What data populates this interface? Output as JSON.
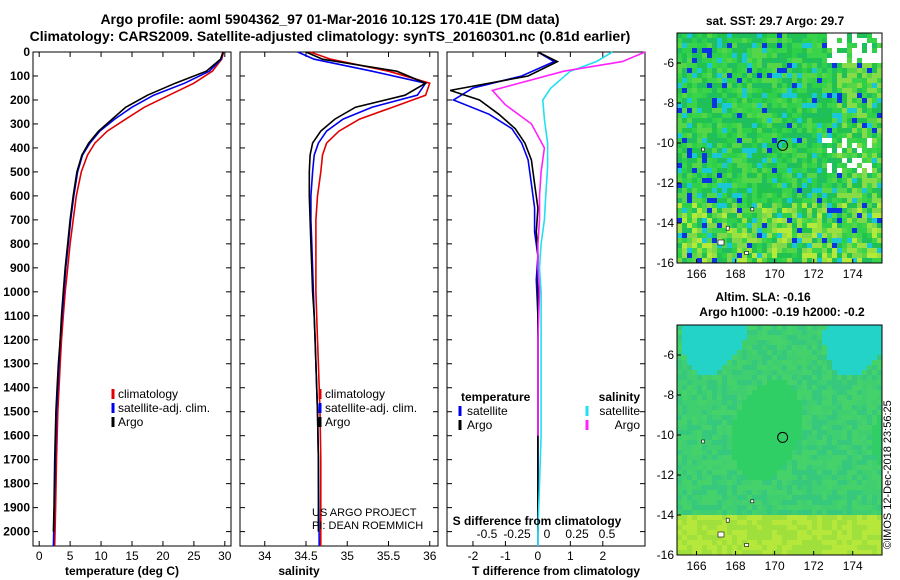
{
  "header": {
    "title_line1": "Argo profile: aoml 5904362_97 01-Mar-2016 10.12S 170.41E (DM data)",
    "title_line2": "Climatology: CARS2009. Satellite-adjusted climatology: synTS_20160301.nc (0.81d earlier)"
  },
  "colors": {
    "climatology": "#e00000",
    "satellite": "#0000ee",
    "argo": "#000000",
    "sat_salinity": "#22e0f0",
    "argo_salinity": "#ff22ff"
  },
  "chart_data": [
    {
      "type": "line",
      "panel": "temperature",
      "xlabel": "temperature (deg C)",
      "xlim": [
        -1,
        31
      ],
      "xticks": [
        0,
        5,
        10,
        15,
        20,
        25,
        30
      ],
      "ylabel": "",
      "ylim": [
        2060,
        0
      ],
      "yticks": [
        0,
        100,
        200,
        300,
        400,
        500,
        600,
        700,
        800,
        900,
        1000,
        1100,
        1200,
        1300,
        1400,
        1500,
        1600,
        1700,
        1800,
        1900,
        2000
      ],
      "legend": [
        "climatology",
        "satellite-adj. clim.",
        "Argo"
      ],
      "series": [
        {
          "name": "climatology",
          "color_key": "climatology",
          "x": [
            29.8,
            29.5,
            28.0,
            25.0,
            21.0,
            17.0,
            14.0,
            11.0,
            9.0,
            7.8,
            6.8,
            6.0,
            5.5,
            5.0,
            4.6,
            4.2,
            3.9,
            3.6,
            3.4,
            3.2,
            3.0,
            2.8,
            2.65,
            2.5
          ],
          "y": [
            0,
            30,
            80,
            130,
            180,
            230,
            280,
            330,
            380,
            430,
            500,
            600,
            700,
            800,
            900,
            1000,
            1100,
            1200,
            1300,
            1400,
            1500,
            1700,
            1900,
            2060
          ]
        },
        {
          "name": "satellite-adj. clim.",
          "color_key": "satellite",
          "x": [
            29.7,
            29.4,
            27.5,
            23.5,
            18.5,
            15.0,
            12.2,
            9.8,
            8.2,
            7.0,
            6.2,
            5.6,
            5.1,
            4.7,
            4.3,
            4.0,
            3.7,
            3.4,
            3.2,
            3.0,
            2.8,
            2.6,
            2.45,
            2.3
          ],
          "y": [
            0,
            30,
            80,
            130,
            180,
            230,
            280,
            330,
            380,
            430,
            500,
            600,
            700,
            800,
            900,
            1000,
            1100,
            1200,
            1300,
            1400,
            1500,
            1700,
            1900,
            2060
          ]
        },
        {
          "name": "Argo",
          "color_key": "argo",
          "x": [
            29.7,
            29.3,
            27.0,
            22.0,
            17.5,
            14.0,
            11.8,
            9.6,
            8.0,
            6.9,
            6.1,
            5.5,
            5.0,
            4.6,
            4.2,
            3.9,
            3.6,
            3.4,
            3.1,
            2.9,
            2.7,
            2.5,
            2.4,
            2.3
          ],
          "y": [
            0,
            30,
            80,
            130,
            180,
            230,
            280,
            330,
            380,
            430,
            500,
            600,
            700,
            800,
            900,
            1000,
            1100,
            1200,
            1300,
            1400,
            1500,
            1700,
            1900,
            2000
          ]
        }
      ]
    },
    {
      "type": "line",
      "panel": "salinity",
      "xlabel": "salinity",
      "xlim": [
        33.7,
        36.1
      ],
      "xticks": [
        34,
        34.5,
        35,
        35.5,
        36
      ],
      "xtick_labels": [
        "34",
        "34.5",
        "35",
        "35.5",
        "36"
      ],
      "ylim": [
        2060,
        0
      ],
      "legend": [
        "climatology",
        "satellite-adj. clim.",
        "Argo"
      ],
      "annotations": [
        "US ARGO PROJECT",
        "PI: DEAN ROEMMICH"
      ],
      "series": [
        {
          "name": "climatology",
          "color_key": "climatology",
          "x": [
            34.55,
            34.8,
            35.5,
            36.0,
            35.95,
            35.55,
            35.15,
            34.9,
            34.75,
            34.7,
            34.68,
            34.64,
            34.62,
            34.62,
            34.62,
            34.62,
            34.63,
            34.64,
            34.65,
            34.66,
            34.67,
            34.68,
            34.68
          ],
          "y": [
            0,
            30,
            80,
            130,
            180,
            230,
            280,
            330,
            380,
            430,
            500,
            600,
            700,
            800,
            900,
            1000,
            1100,
            1200,
            1300,
            1400,
            1500,
            1700,
            2060
          ]
        },
        {
          "name": "satellite-adj. clim.",
          "color_key": "satellite",
          "x": [
            34.4,
            34.6,
            35.3,
            35.95,
            35.85,
            35.3,
            34.95,
            34.75,
            34.65,
            34.6,
            34.58,
            34.56,
            34.56,
            34.57,
            34.58,
            34.59,
            34.6,
            34.61,
            34.62,
            34.63,
            34.64,
            34.65,
            34.66
          ],
          "y": [
            0,
            30,
            80,
            130,
            180,
            230,
            280,
            330,
            380,
            430,
            500,
            600,
            700,
            800,
            900,
            1000,
            1100,
            1200,
            1300,
            1400,
            1500,
            1700,
            2060
          ]
        },
        {
          "name": "Argo",
          "color_key": "argo",
          "x": [
            34.5,
            34.7,
            35.6,
            35.95,
            35.7,
            35.1,
            34.85,
            34.68,
            34.58,
            34.55,
            34.54,
            34.54,
            34.55,
            34.56,
            34.57,
            34.58,
            34.6,
            34.61,
            34.62,
            34.63,
            34.64,
            34.65,
            34.65
          ],
          "y": [
            0,
            30,
            80,
            130,
            180,
            230,
            280,
            330,
            380,
            430,
            500,
            600,
            700,
            800,
            900,
            1000,
            1100,
            1200,
            1300,
            1400,
            1500,
            1700,
            2000
          ]
        }
      ]
    },
    {
      "type": "line",
      "panel": "difference",
      "xlabel": "T difference from climatology",
      "xlim": [
        -2.8,
        3.3
      ],
      "xticks": [
        -2,
        -1,
        0,
        1,
        2
      ],
      "xlabel_top": "S difference from climatology",
      "xticks_top": [
        -0.5,
        -0.25,
        0,
        0.25,
        0.5
      ],
      "xtick_labels_top": [
        "-0.5",
        "-0.25",
        "0",
        "0.25",
        "0.5"
      ],
      "ylim": [
        2060,
        0
      ],
      "legend_temperature": {
        "heading": "temperature",
        "items": [
          "satellite",
          "Argo"
        ]
      },
      "legend_salinity": {
        "heading": "salinity",
        "items": [
          "satellite",
          "Argo"
        ]
      },
      "series": [
        {
          "name": "T satellite",
          "color_key": "satellite",
          "x": [
            0.0,
            0.5,
            -0.5,
            -2.0,
            -2.6,
            -1.5,
            -0.8,
            -0.5,
            -0.3,
            -0.2,
            -0.1,
            -0.1,
            0.0,
            -0.05,
            0.0,
            0.0,
            0.0,
            0.0,
            0.0,
            0.0,
            0.0
          ],
          "y": [
            0,
            40,
            100,
            150,
            200,
            260,
            320,
            380,
            450,
            550,
            650,
            750,
            850,
            950,
            1100,
            1300,
            1500,
            1700,
            1900,
            2000,
            2060
          ]
        },
        {
          "name": "T Argo",
          "color_key": "argo",
          "x": [
            0.0,
            0.6,
            -0.3,
            -2.7,
            -1.8,
            -1.2,
            -0.7,
            -0.4,
            -0.2,
            -0.1,
            0.0,
            -0.05,
            0.0,
            0.0,
            0.0,
            0.0,
            0.0,
            0.0,
            0.0,
            0.0
          ],
          "y": [
            0,
            40,
            100,
            160,
            200,
            260,
            320,
            380,
            450,
            550,
            650,
            750,
            850,
            950,
            1100,
            1300,
            1500,
            1700,
            1900,
            2000
          ]
        },
        {
          "name": "S satellite",
          "color_key": "sat_salinity",
          "x": [
            2.3,
            1.8,
            1.0,
            0.4,
            0.15,
            0.2,
            0.3,
            0.3,
            0.25,
            0.2,
            0.1,
            0.05,
            0.1,
            0.1,
            0.1,
            0.1,
            0.05,
            0.0,
            0.0
          ],
          "y": [
            0,
            40,
            80,
            150,
            200,
            280,
            380,
            480,
            580,
            700,
            800,
            900,
            1000,
            1200,
            1400,
            1600,
            1800,
            2000,
            2060
          ]
        },
        {
          "name": "S Argo",
          "color_key": "argo_salinity",
          "x": [
            3.3,
            2.6,
            0.8,
            -1.4,
            -1.0,
            -0.2,
            0.2,
            0.1,
            0.05,
            0.05,
            0.0,
            0.0,
            0.05,
            0.0,
            0.0,
            0.0
          ],
          "y": [
            0,
            40,
            80,
            160,
            220,
            300,
            400,
            500,
            600,
            700,
            800,
            900,
            1000,
            1200,
            1400,
            1600
          ]
        }
      ]
    },
    {
      "type": "heatmap",
      "panel": "sst_map",
      "title": "sat. SST: 29.7  Argo: 29.7",
      "xlim": [
        165,
        175.5
      ],
      "ylim": [
        -16,
        -4.5
      ],
      "xticks": [
        166,
        168,
        170,
        172,
        174
      ],
      "yticks": [
        -6,
        -8,
        -10,
        -12,
        -14,
        -16
      ],
      "marker": [
        170.41,
        -10.12
      ]
    },
    {
      "type": "heatmap",
      "panel": "sla_map",
      "title_line1": "Altim. SLA: -0.16",
      "title_line2": "Argo h1000: -0.19 h2000: -0.2",
      "xlim": [
        165,
        175.5
      ],
      "ylim": [
        -16,
        -4.5
      ],
      "xticks": [
        166,
        168,
        170,
        172,
        174
      ],
      "yticks": [
        -6,
        -8,
        -10,
        -12,
        -14,
        -16
      ],
      "marker": [
        170.41,
        -10.12
      ]
    }
  ],
  "footer": {
    "credit": "©IMOS 12-Dec-2018 23:56:25"
  }
}
